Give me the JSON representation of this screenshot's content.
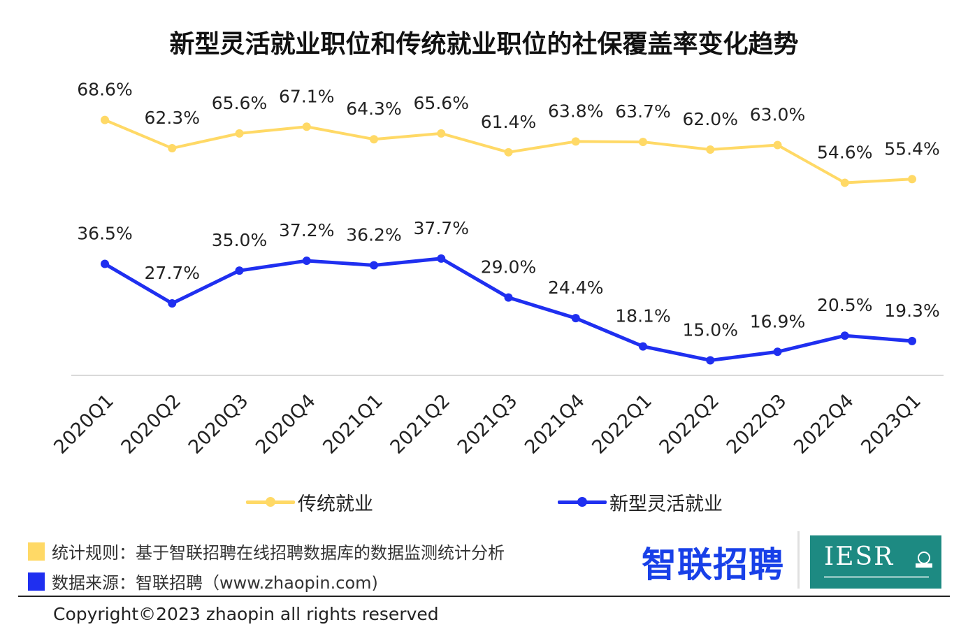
{
  "chart_data": {
    "type": "line",
    "title": "新型灵活就业职位和传统就业职位的社保覆盖率变化趋势",
    "categories": [
      "2020Q1",
      "2020Q2",
      "2020Q3",
      "2020Q4",
      "2021Q1",
      "2021Q2",
      "2021Q3",
      "2021Q4",
      "2022Q1",
      "2022Q2",
      "2022Q3",
      "2022Q4",
      "2023Q1"
    ],
    "series": [
      {
        "name": "传统就业",
        "color": "#ffd966",
        "values": [
          68.6,
          62.3,
          65.6,
          67.1,
          64.3,
          65.6,
          61.4,
          63.8,
          63.7,
          62.0,
          63.0,
          54.6,
          55.4
        ],
        "labels": [
          "68.6%",
          "62.3%",
          "65.6%",
          "67.1%",
          "64.3%",
          "65.6%",
          "61.4%",
          "63.8%",
          "63.7%",
          "62.0%",
          "63.0%",
          "54.6%",
          "55.4%"
        ]
      },
      {
        "name": "新型灵活就业",
        "color": "#1f2ff0",
        "values": [
          36.5,
          27.7,
          35.0,
          37.2,
          36.2,
          37.7,
          29.0,
          24.4,
          18.1,
          15.0,
          16.9,
          20.5,
          19.3
        ],
        "labels": [
          "36.5%",
          "27.7%",
          "35.0%",
          "37.2%",
          "36.2%",
          "37.7%",
          "29.0%",
          "24.4%",
          "18.1%",
          "15.0%",
          "16.9%",
          "20.5%",
          "19.3%"
        ]
      }
    ],
    "ylim": [
      0,
      80
    ],
    "grid": false,
    "legend_position": "bottom"
  },
  "notes": {
    "rule": "统计规则：基于智联招聘在线招聘数据库的数据监测统计分析",
    "source": "数据来源：智联招聘（www.zhaopin.com)",
    "rule_color": "#ffd966",
    "source_color": "#1f2ff0"
  },
  "logos": {
    "zhaopin": "智联招聘",
    "iesr": "IESR",
    "iesr_color": "#1d8a82"
  },
  "footer": {
    "copyright": "Copyright©2023 zhaopin all rights reserved"
  }
}
